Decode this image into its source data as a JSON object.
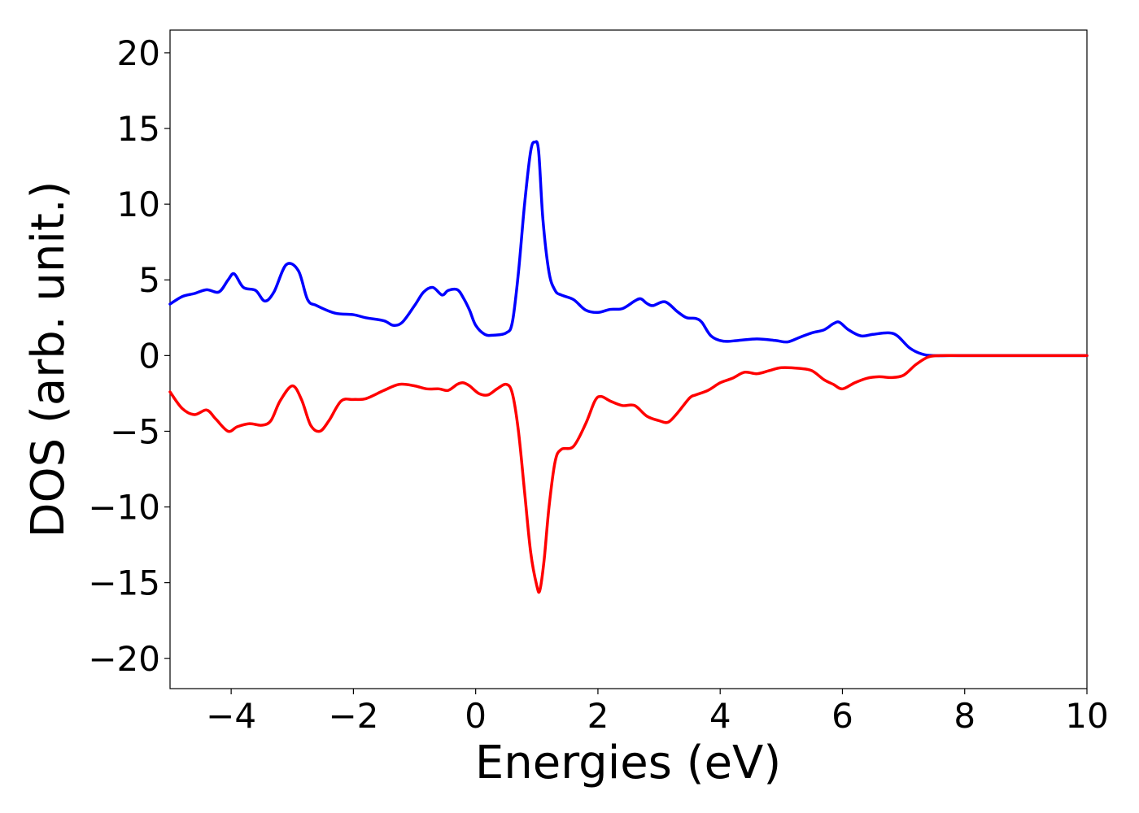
{
  "chart_data": {
    "type": "line",
    "title": "",
    "xlabel": "Energies (eV)",
    "ylabel": "DOS (arb. unit.)",
    "xlim": [
      -5,
      10
    ],
    "ylim": [
      -22,
      21.5
    ],
    "x_ticks": [
      -4,
      -2,
      0,
      2,
      4,
      6,
      8,
      10
    ],
    "x_tick_labels": [
      "−4",
      "−2",
      "0",
      "2",
      "4",
      "6",
      "8",
      "10"
    ],
    "y_ticks": [
      -20,
      -15,
      -10,
      -5,
      0,
      5,
      10,
      15,
      20
    ],
    "y_tick_labels": [
      "−20",
      "−15",
      "−10",
      "−5",
      "0",
      "5",
      "10",
      "15",
      "20"
    ],
    "grid": false,
    "legend": "none",
    "series": [
      {
        "color": "#0000ff",
        "x": [
          -5,
          -4.8,
          -4.6,
          -4.4,
          -4.2,
          -4.05,
          -3.95,
          -3.8,
          -3.6,
          -3.45,
          -3.3,
          -3.1,
          -2.9,
          -2.75,
          -2.6,
          -2.3,
          -2.0,
          -1.8,
          -1.5,
          -1.35,
          -1.2,
          -1.0,
          -0.85,
          -0.7,
          -0.55,
          -0.45,
          -0.3,
          -0.2,
          -0.1,
          0.0,
          0.15,
          0.3,
          0.5,
          0.6,
          0.7,
          0.8,
          0.9,
          0.97,
          1.03,
          1.1,
          1.2,
          1.3,
          1.4,
          1.6,
          1.8,
          2.0,
          2.2,
          2.4,
          2.6,
          2.7,
          2.8,
          2.9,
          3.1,
          3.3,
          3.45,
          3.6,
          3.7,
          3.85,
          4.05,
          4.3,
          4.6,
          4.9,
          5.1,
          5.3,
          5.5,
          5.7,
          5.85,
          5.95,
          6.1,
          6.3,
          6.5,
          6.75,
          6.9,
          7.1,
          7.3,
          7.5,
          8.0,
          9.0,
          10.0
        ],
        "y": [
          3.4,
          3.9,
          4.1,
          4.35,
          4.2,
          5.0,
          5.4,
          4.5,
          4.3,
          3.6,
          4.2,
          6.0,
          5.6,
          3.7,
          3.3,
          2.8,
          2.7,
          2.5,
          2.3,
          2.0,
          2.2,
          3.3,
          4.2,
          4.5,
          4.0,
          4.3,
          4.35,
          3.8,
          3.0,
          2.0,
          1.4,
          1.35,
          1.5,
          2.2,
          5.5,
          10.0,
          13.5,
          14.1,
          13.5,
          9.0,
          5.5,
          4.3,
          4.0,
          3.7,
          3.0,
          2.85,
          3.05,
          3.1,
          3.6,
          3.75,
          3.45,
          3.3,
          3.55,
          2.9,
          2.5,
          2.45,
          2.2,
          1.3,
          0.95,
          1.0,
          1.1,
          1.0,
          0.9,
          1.2,
          1.5,
          1.7,
          2.1,
          2.2,
          1.7,
          1.3,
          1.4,
          1.5,
          1.3,
          0.5,
          0.1,
          0.0,
          0.0,
          0.0,
          0.0
        ]
      },
      {
        "color": "#ff0000",
        "x": [
          -5,
          -4.8,
          -4.6,
          -4.4,
          -4.25,
          -4.05,
          -3.9,
          -3.7,
          -3.5,
          -3.35,
          -3.2,
          -3.0,
          -2.85,
          -2.7,
          -2.55,
          -2.4,
          -2.2,
          -2.0,
          -1.8,
          -1.5,
          -1.25,
          -1.0,
          -0.8,
          -0.6,
          -0.45,
          -0.3,
          -0.2,
          -0.1,
          0.05,
          0.2,
          0.35,
          0.5,
          0.6,
          0.7,
          0.8,
          0.9,
          1.0,
          1.05,
          1.12,
          1.2,
          1.3,
          1.4,
          1.6,
          1.8,
          1.95,
          2.05,
          2.2,
          2.4,
          2.6,
          2.8,
          3.0,
          3.15,
          3.3,
          3.5,
          3.6,
          3.8,
          4.0,
          4.2,
          4.4,
          4.6,
          4.8,
          5.0,
          5.3,
          5.5,
          5.7,
          5.85,
          6.0,
          6.2,
          6.4,
          6.6,
          6.8,
          7.0,
          7.2,
          7.4,
          7.6,
          8.0,
          9.0,
          10.0
        ],
        "y": [
          -2.4,
          -3.5,
          -3.9,
          -3.6,
          -4.2,
          -5.0,
          -4.7,
          -4.5,
          -4.6,
          -4.3,
          -3.0,
          -2.0,
          -2.9,
          -4.6,
          -5.0,
          -4.3,
          -3.0,
          -2.9,
          -2.85,
          -2.3,
          -1.9,
          -2.0,
          -2.2,
          -2.2,
          -2.3,
          -1.9,
          -1.8,
          -2.0,
          -2.5,
          -2.6,
          -2.2,
          -1.9,
          -2.5,
          -5.0,
          -9.0,
          -13.0,
          -15.2,
          -15.5,
          -13.5,
          -10.0,
          -7.0,
          -6.2,
          -6.0,
          -4.5,
          -3.0,
          -2.7,
          -3.0,
          -3.3,
          -3.3,
          -4.0,
          -4.3,
          -4.4,
          -3.8,
          -2.8,
          -2.6,
          -2.3,
          -1.8,
          -1.5,
          -1.1,
          -1.2,
          -1.0,
          -0.8,
          -0.85,
          -1.0,
          -1.6,
          -1.9,
          -2.2,
          -1.8,
          -1.5,
          -1.4,
          -1.45,
          -1.3,
          -0.6,
          -0.1,
          0.0,
          0.0,
          0.0,
          0.0
        ]
      }
    ]
  }
}
